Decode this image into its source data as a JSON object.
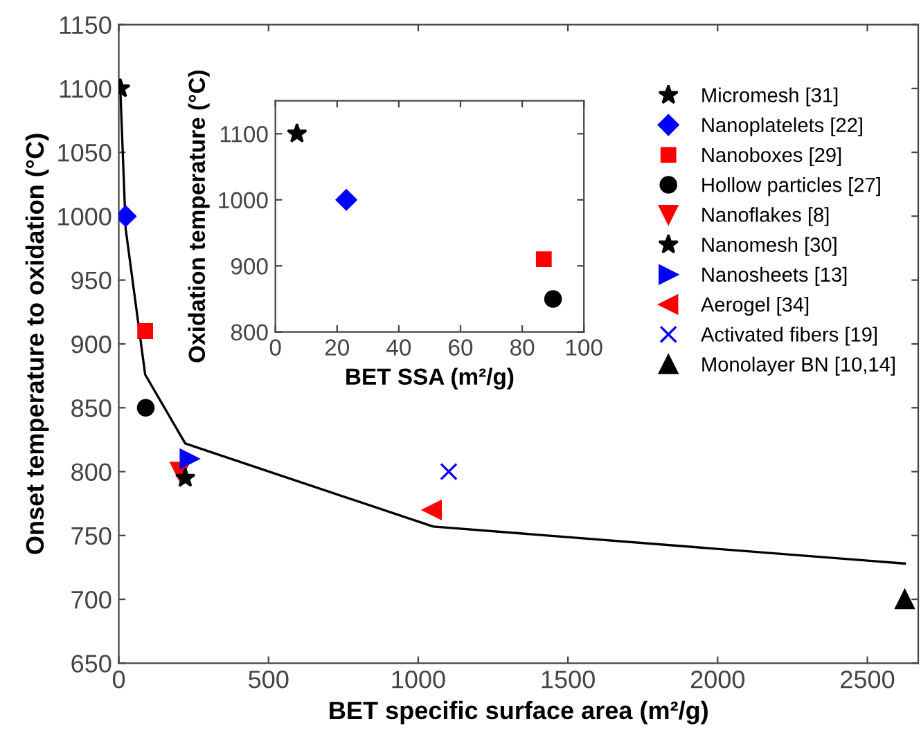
{
  "chart_data": [
    {
      "type": "scatter",
      "xlabel": "BET specific surface area (m²/g)",
      "ylabel": "Onset temperature to oxidation (°C)",
      "xlim": [
        0,
        2670
      ],
      "ylim": [
        650,
        1150
      ],
      "xticks": [
        0,
        500,
        1000,
        1500,
        2000,
        2500
      ],
      "yticks": [
        650,
        700,
        750,
        800,
        850,
        900,
        950,
        1000,
        1050,
        1100,
        1150
      ],
      "grid": false,
      "legend": "top right",
      "series": [
        {
          "name": "Micromesh [31]",
          "color": "#000000",
          "marker": "star",
          "x": [
            5
          ],
          "values": [
            1100
          ]
        },
        {
          "name": "Nanoplatelets [22]",
          "color": "#0000ff",
          "marker": "diamond",
          "x": [
            23
          ],
          "values": [
            1000
          ]
        },
        {
          "name": "Nanoboxes [29]",
          "color": "#ff0000",
          "marker": "square",
          "x": [
            88
          ],
          "values": [
            910
          ]
        },
        {
          "name": "Hollow particles [27]",
          "color": "#000000",
          "marker": "circle",
          "x": [
            90
          ],
          "values": [
            850
          ]
        },
        {
          "name": "Nanoflakes [8]",
          "color": "#ff0000",
          "marker": "triangle-down",
          "x": [
            204
          ],
          "values": [
            800
          ]
        },
        {
          "name": "Nanomesh [30]",
          "color": "#000000",
          "marker": "star",
          "x": [
            222
          ],
          "values": [
            795
          ]
        },
        {
          "name": "Nanosheets [13]",
          "color": "#0000ff",
          "marker": "triangle-right",
          "x": [
            236
          ],
          "values": [
            810
          ]
        },
        {
          "name": "Aerogel [34]",
          "color": "#ff0000",
          "marker": "triangle-left",
          "x": [
            1046
          ],
          "values": [
            770
          ]
        },
        {
          "name": "Activated fibers [19]",
          "color": "#0000ff",
          "marker": "cross",
          "x": [
            1102
          ],
          "values": [
            800
          ]
        },
        {
          "name": "Monolayer BN [10,14]",
          "color": "#000000",
          "marker": "triangle",
          "x": [
            2625
          ],
          "values": [
            700
          ]
        },
        {
          "type": "line",
          "color": "#000000",
          "marker": "none",
          "x": [
            5,
            23,
            88,
            222,
            1050,
            2625
          ],
          "values": [
            1100,
            990,
            876,
            822,
            757,
            728
          ]
        }
      ]
    },
    {
      "type": "scatter",
      "xlabel": "BET SSA (m²/g)",
      "ylabel": "Oxidation temperature (°C)",
      "xlim": [
        0,
        100
      ],
      "ylim": [
        800,
        1150
      ],
      "xticks": [
        0,
        20,
        40,
        60,
        80,
        100
      ],
      "yticks": [
        800,
        900,
        1000,
        1100
      ],
      "grid": false,
      "series": [
        {
          "color": "#000000",
          "marker": "star",
          "x": [
            7
          ],
          "values": [
            1100
          ]
        },
        {
          "color": "#0000ff",
          "marker": "diamond",
          "x": [
            23
          ],
          "values": [
            1000
          ]
        },
        {
          "color": "#ff0000",
          "marker": "square",
          "x": [
            87
          ],
          "values": [
            910
          ]
        },
        {
          "color": "#000000",
          "marker": "circle",
          "x": [
            90
          ],
          "values": [
            850
          ]
        }
      ]
    }
  ]
}
